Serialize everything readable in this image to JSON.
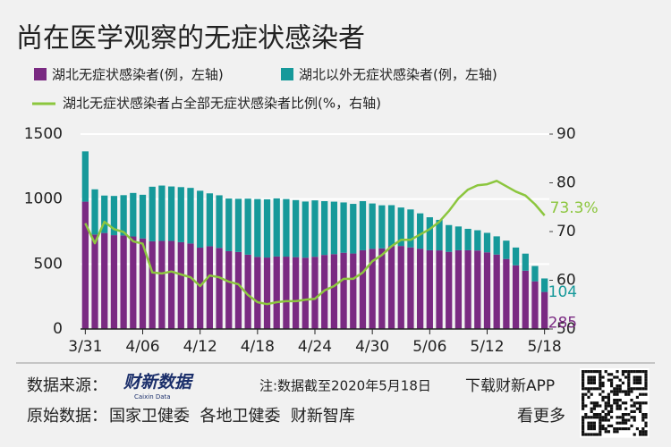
{
  "chart_data": {
    "type": "bar",
    "stacked": true,
    "title": "尚在医学观察的无症状感染者",
    "categories": [
      "3/31",
      null,
      null,
      null,
      null,
      null,
      "4/06",
      null,
      null,
      null,
      null,
      null,
      "4/12",
      null,
      null,
      null,
      null,
      null,
      "4/18",
      null,
      null,
      null,
      null,
      null,
      "4/24",
      null,
      null,
      null,
      null,
      null,
      "4/30",
      null,
      null,
      null,
      null,
      null,
      "5/06",
      null,
      null,
      null,
      null,
      null,
      "5/12",
      null,
      null,
      null,
      null,
      null,
      "5/18"
    ],
    "series": [
      {
        "name": "湖北无症状感染者(例，左轴)",
        "type": "bar",
        "color": "#7a2a82",
        "values": [
          980,
          727,
          739,
          722,
          720,
          712,
          697,
          675,
          678,
          678,
          668,
          658,
          626,
          637,
          624,
          599,
          593,
          572,
          555,
          550,
          558,
          557,
          553,
          549,
          556,
          570,
          576,
          587,
          581,
          606,
          617,
          621,
          639,
          639,
          628,
          618,
          606,
          605,
          594,
          606,
          606,
          604,
          590,
          573,
          539,
          490,
          449,
          367,
          285
        ],
        "value_labels": [
          null,
          null,
          null,
          null,
          null,
          null,
          null,
          null,
          null,
          null,
          null,
          null,
          null,
          null,
          null,
          null,
          null,
          null,
          null,
          null,
          null,
          null,
          null,
          null,
          null,
          null,
          null,
          null,
          null,
          null,
          null,
          null,
          null,
          null,
          null,
          null,
          null,
          null,
          null,
          null,
          null,
          null,
          null,
          null,
          null,
          null,
          null,
          null,
          "285"
        ]
      },
      {
        "name": "湖北以外无症状感染者(例，左轴)",
        "type": "bar",
        "color": "#16999a",
        "values": [
          387,
          348,
          288,
          302,
          310,
          335,
          336,
          420,
          426,
          419,
          424,
          428,
          438,
          407,
          405,
          405,
          409,
          431,
          445,
          448,
          447,
          443,
          439,
          432,
          434,
          414,
          404,
          387,
          382,
          378,
          349,
          331,
          314,
          296,
          292,
          272,
          254,
          235,
          206,
          183,
          165,
          156,
          150,
          140,
          141,
          137,
          131,
          118,
          104
        ],
        "value_labels": [
          null,
          null,
          null,
          null,
          null,
          null,
          null,
          null,
          null,
          null,
          null,
          null,
          null,
          null,
          null,
          null,
          null,
          null,
          null,
          null,
          null,
          null,
          null,
          null,
          null,
          null,
          null,
          null,
          null,
          null,
          null,
          null,
          null,
          null,
          null,
          null,
          null,
          null,
          null,
          null,
          null,
          null,
          null,
          null,
          null,
          null,
          null,
          null,
          "104"
        ]
      },
      {
        "name": "湖北无症状感染者占全部无症状感染者比例(%，右轴)",
        "type": "line",
        "axis": "y2",
        "color": "#8cc63e",
        "values": [
          71.7,
          67.6,
          72,
          70.5,
          69.9,
          68,
          67.5,
          61.6,
          61.4,
          61.8,
          61.2,
          60.6,
          58.8,
          61,
          60.6,
          59.7,
          59.2,
          57,
          55.5,
          55.1,
          55.5,
          55.7,
          55.7,
          56,
          56.2,
          57.9,
          58.8,
          60.3,
          60.3,
          61.6,
          63.9,
          65.2,
          67,
          68.3,
          68.3,
          69.4,
          70.5,
          72,
          74.2,
          76.8,
          78.6,
          79.5,
          79.7,
          80.4,
          79.3,
          78.2,
          77.4,
          75.6,
          73.3
        ],
        "value_labels": [
          null,
          null,
          null,
          null,
          null,
          null,
          null,
          null,
          null,
          null,
          null,
          null,
          null,
          null,
          null,
          null,
          null,
          null,
          null,
          null,
          null,
          null,
          null,
          null,
          null,
          null,
          null,
          null,
          null,
          null,
          null,
          null,
          null,
          null,
          null,
          null,
          null,
          null,
          null,
          null,
          null,
          null,
          null,
          null,
          null,
          null,
          null,
          null,
          "73.3%"
        ]
      }
    ],
    "ylim": [
      0,
      1500
    ],
    "yticks": [
      0,
      500,
      1000,
      1500
    ],
    "y2lim": [
      50,
      90
    ],
    "y2ticks": [
      50,
      60,
      70,
      80,
      90
    ],
    "grid": true
  },
  "footer": {
    "source_label": "数据来源：",
    "logo": "财新数据",
    "logo_sub": "Caixin Data",
    "note": "注:数据截至2020年5月18日",
    "download": "下载财新APP",
    "raw_label": "原始数据：",
    "raw_sources": "国家卫健委  各地卫健委  财新智库",
    "more": "看更多"
  }
}
